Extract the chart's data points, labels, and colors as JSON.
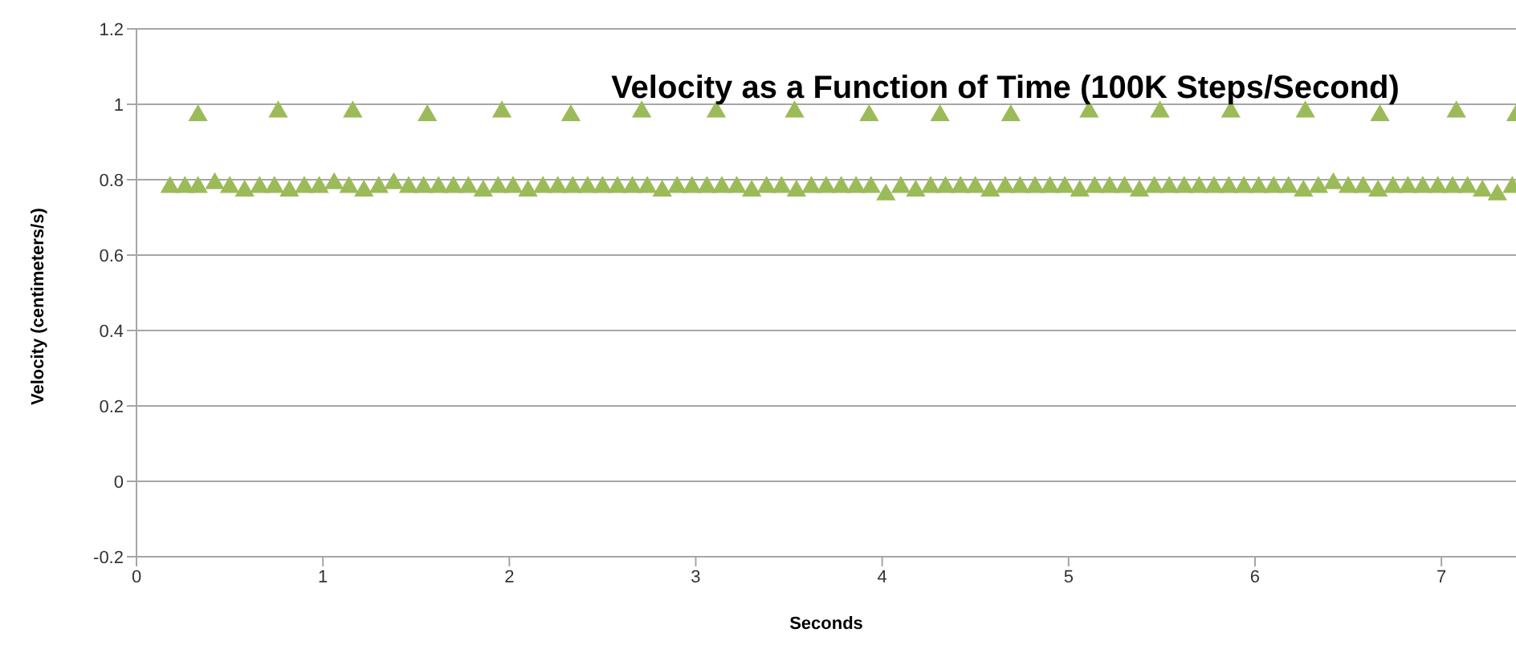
{
  "chart_data": {
    "type": "scatter",
    "title": "Velocity as a Function of Time (100K Steps/Second)",
    "xlabel": "Seconds",
    "ylabel": "Velocity (centimeters/s)",
    "xlim": [
      0,
      7.4
    ],
    "xticks": [
      0,
      1,
      2,
      3,
      4,
      5,
      6,
      7
    ],
    "ylim": [
      -0.2,
      1.2
    ],
    "yticks": [
      -0.2,
      0,
      0.2,
      0.4,
      0.6,
      0.8,
      1,
      1.2
    ],
    "grid": "y",
    "legend": false,
    "marker": "triangle",
    "series": [
      {
        "color": "#9bbb59",
        "x": [
          0.33,
          0.76,
          1.16,
          1.56,
          1.96,
          2.33,
          2.71,
          3.11,
          3.53,
          3.93,
          4.31,
          4.69,
          5.11,
          5.49,
          5.87,
          6.27,
          6.67,
          7.08,
          7.4
        ],
        "values": [
          0.97,
          0.98,
          0.98,
          0.97,
          0.98,
          0.97,
          0.98,
          0.98,
          0.98,
          0.97,
          0.97,
          0.97,
          0.98,
          0.98,
          0.98,
          0.98,
          0.97,
          0.98,
          0.97
        ]
      },
      {
        "color": "#9bbb59",
        "x": [
          0.18,
          0.26,
          0.33,
          0.42,
          0.5,
          0.58,
          0.66,
          0.74,
          0.82,
          0.9,
          0.98,
          1.06,
          1.14,
          1.22,
          1.3,
          1.38,
          1.46,
          1.54,
          1.62,
          1.7,
          1.78,
          1.86,
          1.94,
          2.02,
          2.1,
          2.18,
          2.26,
          2.34,
          2.42,
          2.5,
          2.58,
          2.66,
          2.74,
          2.82,
          2.9,
          2.98,
          3.06,
          3.14,
          3.22,
          3.3,
          3.38,
          3.46,
          3.54,
          3.62,
          3.7,
          3.78,
          3.86,
          3.94,
          4.02,
          4.1,
          4.18,
          4.26,
          4.34,
          4.42,
          4.5,
          4.58,
          4.66,
          4.74,
          4.82,
          4.9,
          4.98,
          5.06,
          5.14,
          5.22,
          5.3,
          5.38,
          5.46,
          5.54,
          5.62,
          5.7,
          5.78,
          5.86,
          5.94,
          6.02,
          6.1,
          6.18,
          6.26,
          6.34,
          6.42,
          6.5,
          6.58,
          6.66,
          6.74,
          6.82,
          6.9,
          6.98,
          7.06,
          7.14,
          7.22,
          7.3,
          7.38
        ],
        "values": [
          0.78,
          0.78,
          0.78,
          0.79,
          0.78,
          0.77,
          0.78,
          0.78,
          0.77,
          0.78,
          0.78,
          0.79,
          0.78,
          0.77,
          0.78,
          0.79,
          0.78,
          0.78,
          0.78,
          0.78,
          0.78,
          0.77,
          0.78,
          0.78,
          0.77,
          0.78,
          0.78,
          0.78,
          0.78,
          0.78,
          0.78,
          0.78,
          0.78,
          0.77,
          0.78,
          0.78,
          0.78,
          0.78,
          0.78,
          0.77,
          0.78,
          0.78,
          0.77,
          0.78,
          0.78,
          0.78,
          0.78,
          0.78,
          0.76,
          0.78,
          0.77,
          0.78,
          0.78,
          0.78,
          0.78,
          0.77,
          0.78,
          0.78,
          0.78,
          0.78,
          0.78,
          0.77,
          0.78,
          0.78,
          0.78,
          0.77,
          0.78,
          0.78,
          0.78,
          0.78,
          0.78,
          0.78,
          0.78,
          0.78,
          0.78,
          0.78,
          0.77,
          0.78,
          0.79,
          0.78,
          0.78,
          0.77,
          0.78,
          0.78,
          0.78,
          0.78,
          0.78,
          0.78,
          0.77,
          0.76,
          0.78
        ]
      }
    ]
  }
}
